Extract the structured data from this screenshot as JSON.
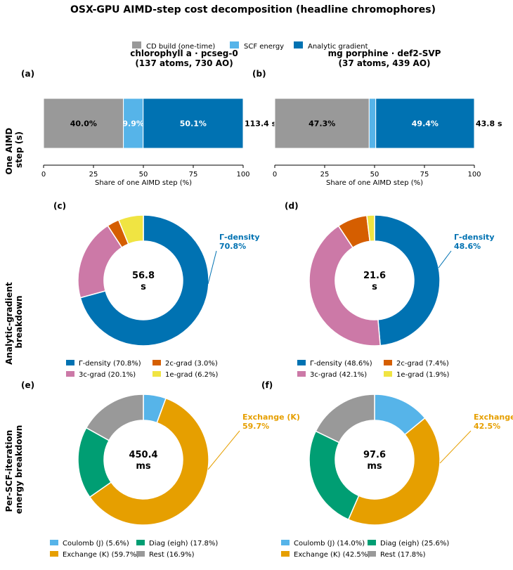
{
  "title": "OSX-GPU AIMD-step cost decomposition (headline chromophores)",
  "colors": {
    "cd": "#999999",
    "scf": "#56b4e9",
    "grad": "#0072b2",
    "gamma": "#0072b2",
    "c3": "#cc79a7",
    "c2": "#d55e00",
    "e1": "#f0e442",
    "coulomb": "#56b4e9",
    "exchange": "#e69f00",
    "diag": "#009e73",
    "rest": "#999999"
  },
  "top_legend": [
    "CD build (one-time)",
    "SCF energy",
    "Analytic gradient"
  ],
  "row_labels": {
    "bars": [
      "One AIMD",
      "step (s)"
    ],
    "gradient": [
      "Analytic-gradient",
      "breakdown"
    ],
    "scf": [
      "Per-SCF-iteration",
      "energy breakdown"
    ]
  },
  "chart_data": [
    {
      "type": "bar",
      "panel": "(a)",
      "title_lines": [
        "chlorophyll a  ·  pcseg-0",
        "(137 atoms, 730 AO)"
      ],
      "categories": [
        "CD build (one-time)",
        "SCF energy",
        "Analytic gradient"
      ],
      "values": [
        40.0,
        9.9,
        50.1
      ],
      "value_labels": [
        "40.0%",
        "9.9%",
        "50.1%"
      ],
      "total_label": "113.4 s",
      "xlabel": "Share of one AIMD step (%)",
      "xlim": [
        0,
        100
      ],
      "xticks": [
        "0",
        "25",
        "50",
        "75",
        "100"
      ]
    },
    {
      "type": "bar",
      "panel": "(b)",
      "title_lines": [
        "mg porphine  ·  def2-SVP",
        "(37 atoms, 439 AO)"
      ],
      "categories": [
        "CD build (one-time)",
        "SCF energy",
        "Analytic gradient"
      ],
      "values": [
        47.3,
        3.3,
        49.4
      ],
      "value_labels": [
        "47.3%",
        "",
        "49.4%"
      ],
      "total_label": "43.8 s",
      "xlabel": "Share of one AIMD step (%)",
      "xlim": [
        0,
        100
      ],
      "xticks": [
        "0",
        "25",
        "50",
        "75",
        "100"
      ]
    },
    {
      "type": "pie",
      "panel": "(c)",
      "center": [
        "56.8",
        "s"
      ],
      "slices": [
        {
          "name": "Γ-density",
          "value": 70.8,
          "legend": "Γ-density  (70.8%)",
          "color": "gamma"
        },
        {
          "name": "3c-grad",
          "value": 20.1,
          "legend": "3c-grad  (20.1%)",
          "color": "c3"
        },
        {
          "name": "2c-grad",
          "value": 3.0,
          "legend": "2c-grad  (3.0%)",
          "color": "c2"
        },
        {
          "name": "1e-grad",
          "value": 6.2,
          "legend": "1e-grad  (6.2%)",
          "color": "e1"
        }
      ],
      "annotation": [
        "Γ-density",
        "70.8%"
      ]
    },
    {
      "type": "pie",
      "panel": "(d)",
      "center": [
        "21.6",
        "s"
      ],
      "slices": [
        {
          "name": "Γ-density",
          "value": 48.6,
          "legend": "Γ-density  (48.6%)",
          "color": "gamma"
        },
        {
          "name": "3c-grad",
          "value": 42.1,
          "legend": "3c-grad  (42.1%)",
          "color": "c3"
        },
        {
          "name": "2c-grad",
          "value": 7.4,
          "legend": "2c-grad  (7.4%)",
          "color": "c2"
        },
        {
          "name": "1e-grad",
          "value": 1.9,
          "legend": "1e-grad  (1.9%)",
          "color": "e1"
        }
      ],
      "annotation": [
        "Γ-density",
        "48.6%"
      ]
    },
    {
      "type": "pie",
      "panel": "(e)",
      "center": [
        "450.4",
        "ms"
      ],
      "slices": [
        {
          "name": "Coulomb (J)",
          "value": 5.6,
          "legend": "Coulomb (J)  (5.6%)",
          "color": "coulomb"
        },
        {
          "name": "Exchange (K)",
          "value": 59.7,
          "legend": "Exchange (K)  (59.7%)",
          "color": "exchange"
        },
        {
          "name": "Diag (eigh)",
          "value": 17.8,
          "legend": "Diag (eigh)  (17.8%)",
          "color": "diag"
        },
        {
          "name": "Rest",
          "value": 16.9,
          "legend": "Rest  (16.9%)",
          "color": "rest"
        }
      ],
      "annotation": [
        "Exchange (K)",
        "59.7%"
      ]
    },
    {
      "type": "pie",
      "panel": "(f)",
      "center": [
        "97.6",
        "ms"
      ],
      "slices": [
        {
          "name": "Coulomb (J)",
          "value": 14.0,
          "legend": "Coulomb (J)  (14.0%)",
          "color": "coulomb"
        },
        {
          "name": "Exchange (K)",
          "value": 42.5,
          "legend": "Exchange (K)  (42.5%)",
          "color": "exchange"
        },
        {
          "name": "Diag (eigh)",
          "value": 25.6,
          "legend": "Diag (eigh)  (25.6%)",
          "color": "diag"
        },
        {
          "name": "Rest",
          "value": 17.8,
          "legend": "Rest  (17.8%)",
          "color": "rest"
        }
      ],
      "annotation": [
        "Exchange (K)",
        "42.5%"
      ]
    }
  ]
}
